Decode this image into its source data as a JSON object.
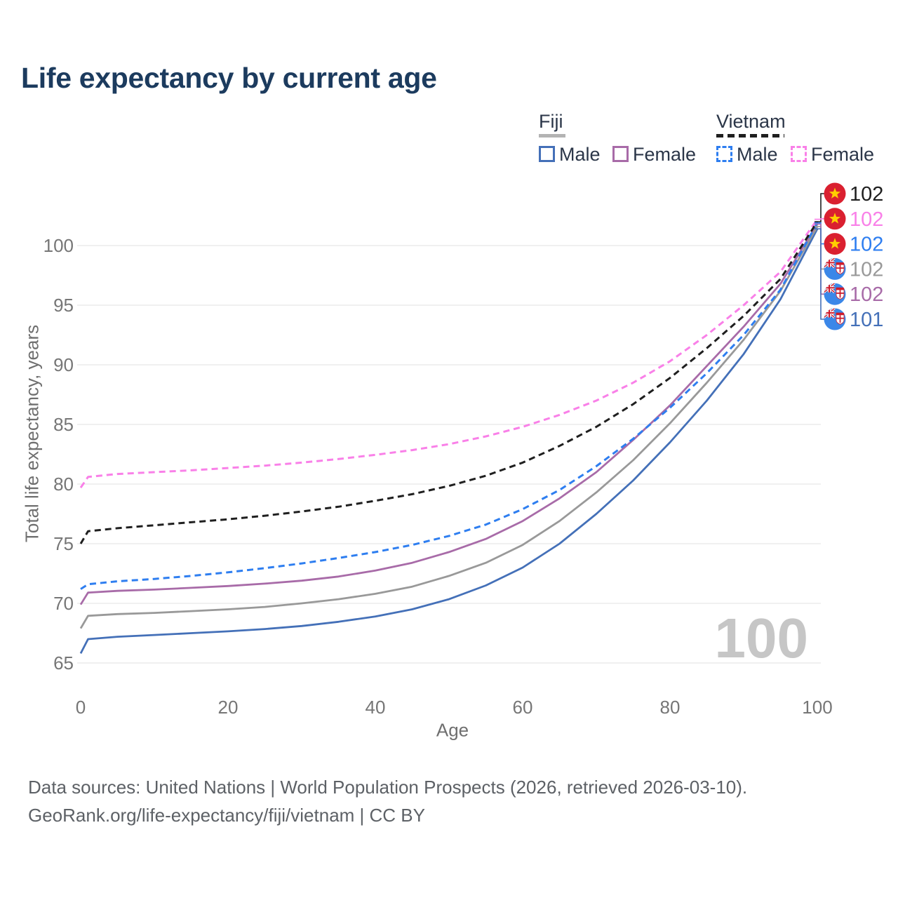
{
  "header": {
    "title": "Life expectancy by current age"
  },
  "legend": {
    "fiji": {
      "title": "Fiji",
      "male": "Male",
      "female": "Female",
      "line_style": "solid",
      "underline_color": "#b3b3b3",
      "male_color": "#4470b8",
      "female_color": "#a86ba8"
    },
    "vietnam": {
      "title": "Vietnam",
      "male": "Male",
      "female": "Female",
      "line_style": "dashed",
      "underline_color": "#1f1f1f",
      "male_color": "#2e7ef0",
      "female_color": "#f980e8"
    }
  },
  "chart_data": {
    "type": "line",
    "title": "Life expectancy by current age",
    "xlabel": "Age",
    "ylabel": "Total life expectancy, years",
    "xlim": [
      0,
      100
    ],
    "ylim": [
      65,
      102.5
    ],
    "xticks": [
      0,
      20,
      40,
      60,
      80,
      100
    ],
    "yticks": [
      65,
      70,
      75,
      80,
      85,
      90,
      95,
      100
    ],
    "grid": "horizontal",
    "gridline_color": "#e8e8e8",
    "tick_color": "#767676",
    "watermark": "100",
    "x_ages": [
      0,
      1,
      5,
      10,
      15,
      20,
      25,
      30,
      35,
      40,
      45,
      50,
      55,
      60,
      65,
      70,
      75,
      80,
      85,
      90,
      95,
      100
    ],
    "series": [
      {
        "name": "Vietnam",
        "sex": "total",
        "country": "vietnam",
        "color": "#1f1f1f",
        "dashed": true,
        "end_label": "102",
        "values": [
          75.0,
          76.05,
          76.3,
          76.55,
          76.8,
          77.05,
          77.35,
          77.7,
          78.1,
          78.6,
          79.15,
          79.85,
          80.7,
          81.8,
          83.2,
          84.8,
          86.7,
          88.9,
          91.4,
          94.1,
          97.2,
          102.0
        ]
      },
      {
        "name": "Vietnam Female",
        "sex": "female",
        "country": "vietnam",
        "color": "#f980e8",
        "dashed": true,
        "end_label": "102",
        "values": [
          79.7,
          80.6,
          80.85,
          81.0,
          81.15,
          81.35,
          81.55,
          81.8,
          82.1,
          82.45,
          82.85,
          83.35,
          84.0,
          84.8,
          85.8,
          87.0,
          88.5,
          90.3,
          92.5,
          95.0,
          97.8,
          102.2
        ]
      },
      {
        "name": "Vietnam Male",
        "sex": "male",
        "country": "vietnam",
        "color": "#2e7ef0",
        "dashed": true,
        "end_label": "102",
        "values": [
          71.2,
          71.6,
          71.85,
          72.05,
          72.3,
          72.6,
          72.95,
          73.35,
          73.8,
          74.3,
          74.9,
          75.65,
          76.6,
          77.9,
          79.5,
          81.5,
          83.8,
          86.4,
          89.3,
          92.5,
          96.3,
          101.9
        ]
      },
      {
        "name": "Fiji",
        "sex": "total",
        "country": "fiji",
        "color": "#999999",
        "dashed": false,
        "end_label": "102",
        "values": [
          67.9,
          68.95,
          69.1,
          69.2,
          69.35,
          69.5,
          69.7,
          70.0,
          70.35,
          70.8,
          71.4,
          72.3,
          73.4,
          74.9,
          76.9,
          79.3,
          82.0,
          85.1,
          88.5,
          92.1,
          96.2,
          101.6
        ]
      },
      {
        "name": "Fiji Female",
        "sex": "female",
        "country": "fiji",
        "color": "#a86ba8",
        "dashed": false,
        "end_label": "102",
        "values": [
          69.9,
          70.9,
          71.05,
          71.15,
          71.3,
          71.45,
          71.65,
          71.9,
          72.25,
          72.75,
          73.4,
          74.3,
          75.4,
          76.9,
          78.8,
          81.0,
          83.7,
          86.6,
          89.9,
          93.2,
          96.8,
          101.8
        ]
      },
      {
        "name": "Fiji Male",
        "sex": "male",
        "country": "fiji",
        "color": "#4470b8",
        "dashed": false,
        "end_label": "101",
        "values": [
          65.8,
          67.0,
          67.2,
          67.35,
          67.5,
          67.65,
          67.85,
          68.1,
          68.45,
          68.9,
          69.5,
          70.35,
          71.5,
          73.0,
          75.0,
          77.5,
          80.3,
          83.5,
          87.0,
          90.9,
          95.5,
          101.4
        ]
      }
    ],
    "flag_colors": {
      "vietnam_red": "#da2030",
      "vietnam_star": "#ffce00",
      "fiji_blue": "#3b87e8",
      "fiji_navy": "#283a8c",
      "fiji_red": "#cf1b2b",
      "fiji_white": "#ffffff"
    }
  },
  "footer": {
    "line1": "Data sources: United Nations | World Population Prospects (2026, retrieved 2026-03-10).",
    "line2": "GeoRank.org/life-expectancy/fiji/vietnam | CC BY"
  }
}
